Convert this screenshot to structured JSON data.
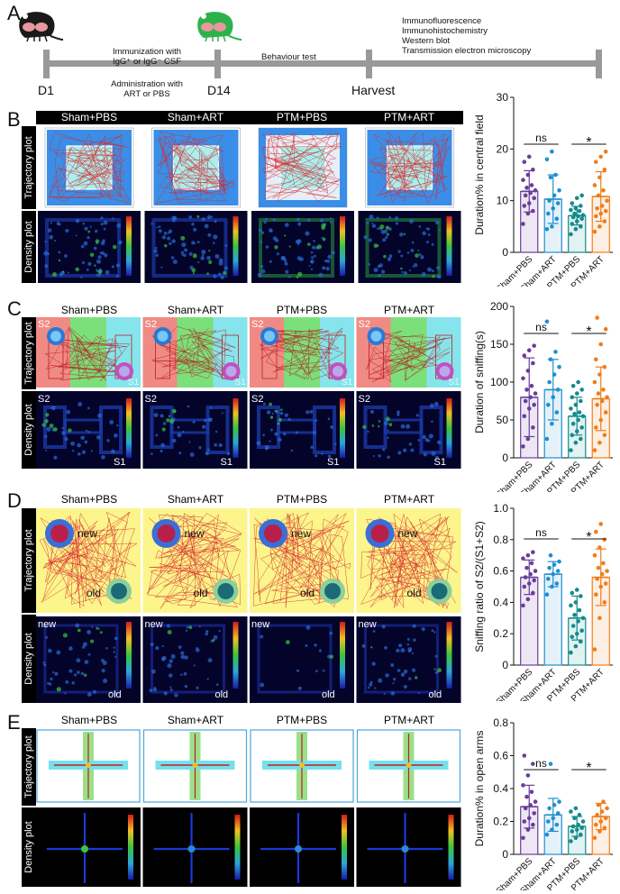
{
  "panels": {
    "a": "A",
    "b": "B",
    "c": "C",
    "d": "D",
    "e": "E"
  },
  "timeline": {
    "immunization": "Immunization with",
    "immunization2": "IgG⁺ or IgG⁻ CSF",
    "administration": "Administration with",
    "administration2": "ART or PBS",
    "behaviour": "Behaviour test",
    "analyses": [
      "Immunofluorescence",
      "Immunohistochemistry",
      "Western blot",
      "Transmission electron microscopy"
    ],
    "d1": "D1",
    "d14": "D14",
    "harvest": "Harvest",
    "mouse_colors": {
      "first": "#1a1a1a",
      "second": "#2db24b"
    }
  },
  "groups": [
    "Sham+PBS",
    "Sham+ART",
    "PTM+PBS",
    "PTM+ART"
  ],
  "row_labels": {
    "trajectory": "Trajectory plot",
    "density": "Density plot"
  },
  "chamber_labels": {
    "s1": "S1",
    "s2": "S2",
    "new": "new",
    "old": "old"
  },
  "stats": {
    "ns": "ns",
    "sig": "*"
  },
  "colors": {
    "sham_pbs": "#6a3d9a",
    "sham_art": "#1f8fd0",
    "ptm_pbs": "#138b8b",
    "ptm_art": "#f07d1a",
    "trajectory": "#d8282a",
    "open_field_blue": "#3a8ee8",
    "center_cyan": "#a8f0ef"
  },
  "chart_data": [
    {
      "type": "bar",
      "panel": "B",
      "ylabel": "Duration% in central field",
      "ylim": [
        0,
        30
      ],
      "yticks": [
        0,
        10,
        20,
        30
      ],
      "categories": [
        "Sham+PBS",
        "Sham+ART",
        "PTM+PBS",
        "PTM+ART"
      ],
      "values": [
        11.8,
        10.3,
        7.1,
        10.8
      ],
      "errors": [
        4.0,
        4.7,
        1.8,
        4.8
      ],
      "points": [
        [
          5.5,
          7.5,
          8.0,
          9.0,
          9.5,
          10.5,
          11.0,
          11.5,
          12.0,
          12.5,
          13.0,
          14.0,
          15.0,
          16.0,
          17.5,
          18.5
        ],
        [
          4.5,
          5.0,
          6.5,
          7.5,
          8.5,
          9.5,
          10.0,
          11.0,
          12.0,
          14.5,
          15.0,
          18.0,
          19.5
        ],
        [
          3.5,
          4.5,
          5.0,
          5.5,
          6.0,
          6.5,
          6.8,
          7.0,
          7.2,
          7.5,
          8.0,
          8.2,
          8.5,
          9.0,
          9.5,
          10.5,
          11.0
        ],
        [
          4.0,
          5.0,
          6.0,
          7.0,
          7.5,
          8.0,
          8.5,
          9.0,
          10.0,
          11.0,
          12.0,
          13.0,
          14.5,
          16.0,
          17.5,
          18.5,
          19.5
        ]
      ],
      "comparisons": [
        {
          "pair": [
            0,
            1
          ],
          "label": "ns"
        },
        {
          "pair": [
            2,
            3
          ],
          "label": "*"
        }
      ]
    },
    {
      "type": "bar",
      "panel": "C",
      "ylabel": "Duration of sniffing(s)",
      "ylim": [
        0,
        200
      ],
      "yticks": [
        0,
        50,
        100,
        150,
        200
      ],
      "categories": [
        "Sham+PBS",
        "Sham+ART",
        "PTM+PBS",
        "PTM+ART"
      ],
      "values": [
        80,
        90,
        55,
        78
      ],
      "errors": [
        52,
        40,
        25,
        42
      ],
      "points": [
        [
          15,
          25,
          40,
          55,
          65,
          70,
          75,
          80,
          85,
          90,
          95,
          105,
          115,
          125,
          135,
          142,
          148
        ],
        [
          25,
          45,
          60,
          70,
          80,
          90,
          100,
          110,
          120,
          130,
          140,
          180
        ],
        [
          10,
          20,
          25,
          30,
          35,
          40,
          45,
          50,
          55,
          58,
          60,
          65,
          70,
          75,
          80,
          85,
          90,
          95,
          100
        ],
        [
          10,
          20,
          30,
          40,
          50,
          60,
          70,
          75,
          80,
          85,
          90,
          100,
          110,
          120,
          130,
          150,
          170,
          185
        ]
      ],
      "comparisons": [
        {
          "pair": [
            0,
            1
          ],
          "label": "ns"
        },
        {
          "pair": [
            2,
            3
          ],
          "label": "*"
        }
      ]
    },
    {
      "type": "bar",
      "panel": "D",
      "ylabel": "Sniffing ratio of S2/(S1+S2)",
      "ylim": [
        0,
        1.0
      ],
      "yticks": [
        0,
        0.2,
        0.4,
        0.6,
        0.8,
        1.0
      ],
      "categories": [
        "Sham+PBS",
        "Sham+ART",
        "PTM+PBS",
        "PTM+ART"
      ],
      "values": [
        0.56,
        0.58,
        0.3,
        0.56
      ],
      "errors": [
        0.11,
        0.08,
        0.14,
        0.18
      ],
      "points": [
        [
          0.38,
          0.42,
          0.46,
          0.5,
          0.52,
          0.54,
          0.56,
          0.58,
          0.6,
          0.62,
          0.65,
          0.68,
          0.7,
          0.72
        ],
        [
          0.45,
          0.5,
          0.52,
          0.55,
          0.58,
          0.6,
          0.62,
          0.64,
          0.66,
          0.7
        ],
        [
          0.08,
          0.12,
          0.15,
          0.18,
          0.2,
          0.22,
          0.25,
          0.28,
          0.3,
          0.32,
          0.35,
          0.38,
          0.4,
          0.44,
          0.46,
          0.48
        ],
        [
          0.1,
          0.3,
          0.4,
          0.45,
          0.5,
          0.52,
          0.55,
          0.58,
          0.6,
          0.62,
          0.65,
          0.7,
          0.75,
          0.8,
          0.85,
          0.9
        ]
      ],
      "comparisons": [
        {
          "pair": [
            0,
            1
          ],
          "label": "ns"
        },
        {
          "pair": [
            2,
            3
          ],
          "label": "*"
        }
      ]
    },
    {
      "type": "bar",
      "panel": "E",
      "ylabel": "Duration% in open arms",
      "ylim": [
        0,
        0.8
      ],
      "yticks": [
        0,
        0.2,
        0.4,
        0.6,
        0.8
      ],
      "categories": [
        "Sham+PBS",
        "Sham+ART",
        "PTM+PBS",
        "PTM+ART"
      ],
      "values": [
        0.29,
        0.24,
        0.17,
        0.23
      ],
      "errors": [
        0.13,
        0.1,
        0.06,
        0.08
      ],
      "points": [
        [
          0.1,
          0.15,
          0.18,
          0.2,
          0.22,
          0.25,
          0.28,
          0.3,
          0.32,
          0.35,
          0.38,
          0.42,
          0.48,
          0.55,
          0.6
        ],
        [
          0.12,
          0.15,
          0.18,
          0.2,
          0.22,
          0.25,
          0.28,
          0.3,
          0.32,
          0.55
        ],
        [
          0.08,
          0.1,
          0.12,
          0.14,
          0.15,
          0.16,
          0.17,
          0.18,
          0.2,
          0.22,
          0.24,
          0.26,
          0.28
        ],
        [
          0.1,
          0.14,
          0.16,
          0.18,
          0.2,
          0.22,
          0.24,
          0.26,
          0.28,
          0.3,
          0.32
        ]
      ],
      "comparisons": [
        {
          "pair": [
            0,
            1
          ],
          "label": "ns"
        },
        {
          "pair": [
            2,
            3
          ],
          "label": "*"
        }
      ]
    }
  ]
}
